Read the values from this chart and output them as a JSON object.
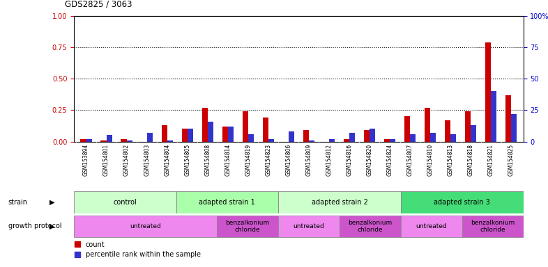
{
  "title": "GDS2825 / 3063",
  "samples": [
    "GSM153894",
    "GSM154801",
    "GSM154802",
    "GSM154803",
    "GSM154804",
    "GSM154805",
    "GSM154808",
    "GSM154814",
    "GSM154819",
    "GSM154823",
    "GSM154806",
    "GSM154809",
    "GSM154812",
    "GSM154816",
    "GSM154820",
    "GSM154824",
    "GSM154807",
    "GSM154810",
    "GSM154813",
    "GSM154818",
    "GSM154821",
    "GSM154825"
  ],
  "red_values": [
    0.02,
    0.01,
    0.02,
    0.0,
    0.13,
    0.1,
    0.27,
    0.12,
    0.24,
    0.19,
    0.0,
    0.09,
    0.0,
    0.02,
    0.09,
    0.02,
    0.2,
    0.27,
    0.17,
    0.24,
    0.79,
    0.37
  ],
  "blue_values": [
    0.02,
    0.05,
    0.01,
    0.07,
    0.01,
    0.1,
    0.16,
    0.12,
    0.06,
    0.02,
    0.08,
    0.01,
    0.02,
    0.07,
    0.1,
    0.02,
    0.06,
    0.07,
    0.06,
    0.13,
    0.4,
    0.22
  ],
  "strain_groups": [
    {
      "label": "control",
      "start": 0,
      "end": 4,
      "color": "#ccffcc"
    },
    {
      "label": "adapted strain 1",
      "start": 5,
      "end": 9,
      "color": "#aaffaa"
    },
    {
      "label": "adapted strain 2",
      "start": 10,
      "end": 15,
      "color": "#ccffcc"
    },
    {
      "label": "adapted strain 3",
      "start": 16,
      "end": 21,
      "color": "#44dd77"
    }
  ],
  "protocol_groups": [
    {
      "label": "untreated",
      "start": 0,
      "end": 6,
      "color": "#ee88ee"
    },
    {
      "label": "benzalkonium\nchloride",
      "start": 7,
      "end": 9,
      "color": "#cc55cc"
    },
    {
      "label": "untreated",
      "start": 10,
      "end": 12,
      "color": "#ee88ee"
    },
    {
      "label": "benzalkonium\nchloride",
      "start": 13,
      "end": 15,
      "color": "#cc55cc"
    },
    {
      "label": "untreated",
      "start": 16,
      "end": 18,
      "color": "#ee88ee"
    },
    {
      "label": "benzalkonium\nchloride",
      "start": 19,
      "end": 21,
      "color": "#cc55cc"
    }
  ],
  "ylim": [
    0,
    1.0
  ],
  "yticks_left": [
    0,
    0.25,
    0.5,
    0.75,
    1.0
  ],
  "yticks_right": [
    0,
    25,
    50,
    75,
    100
  ],
  "left_axis_color": "#cc0000",
  "right_axis_color": "#0000cc",
  "bar_color_red": "#cc0000",
  "bar_color_blue": "#3333cc",
  "bg_color": "#ffffff",
  "xlabel_bg": "#cccccc",
  "legend_count_label": "count",
  "legend_pct_label": "percentile rank within the sample",
  "strain_label": "strain",
  "protocol_label": "growth protocol"
}
